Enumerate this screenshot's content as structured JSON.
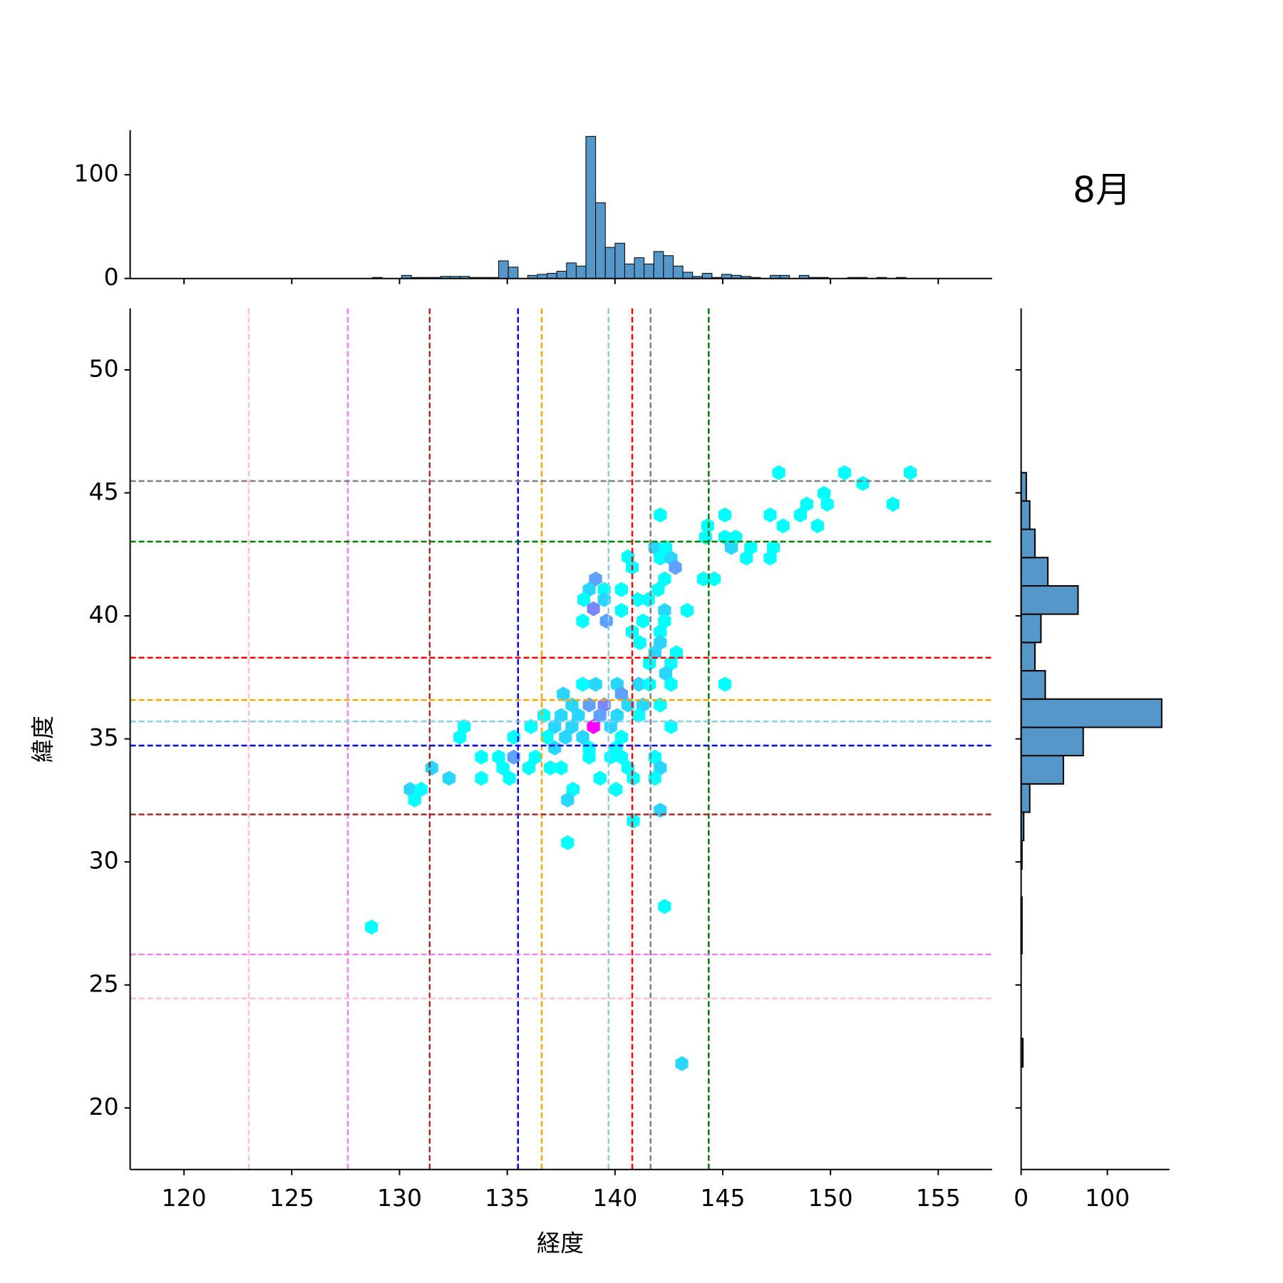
{
  "chart_data": [
    {
      "type": "hexbin",
      "xlabel": "経度",
      "ylabel": "緯度",
      "annotation": "8月",
      "xlim": [
        117.5,
        157.5
      ],
      "ylim": [
        17.5,
        52.5
      ],
      "xticks": [
        120,
        125,
        130,
        135,
        140,
        145,
        150,
        155
      ],
      "yticks": [
        20,
        25,
        30,
        35,
        40,
        45,
        50
      ],
      "cmap": [
        "#00ffff",
        "#ff00ff"
      ],
      "x": [
        147.6,
        150.65,
        153.7,
        151.5,
        152.9,
        148.9,
        149.7,
        149.85,
        149.4,
        148.6,
        147.2,
        145.1,
        142.1,
        144.3,
        147.8,
        144.2,
        145.1,
        145.6,
        145.4,
        146.3,
        146.1,
        147.2,
        147.35,
        141.85,
        142.35,
        140.6,
        142.1,
        142.6,
        140.8,
        142.8,
        142.3,
        142.0,
        144.1,
        144.6,
        139.1,
        138.8,
        139.5,
        138.55,
        140.3,
        141.05,
        141.55,
        139.5,
        139.0,
        143.35,
        142.3,
        140.3,
        139.6,
        138.5,
        141.3,
        142.3,
        140.8,
        142.1,
        141.15,
        142.1,
        141.85,
        142.85,
        141.6,
        142.6,
        142.35,
        142.6,
        145.1,
        137.6,
        138.5,
        139.1,
        140.1,
        141.1,
        141.6,
        138.0,
        138.8,
        139.5,
        140.3,
        140.6,
        141.3,
        142.1,
        136.7,
        137.5,
        138.3,
        139.3,
        140.1,
        141.1,
        139.0,
        142.6,
        136.1,
        137.2,
        138.0,
        139.8,
        133.0,
        132.8,
        135.3,
        136.85,
        137.7,
        138.5,
        140.3,
        137.2,
        138.8,
        140.05,
        135.3,
        133.8,
        134.6,
        136.3,
        138.8,
        139.8,
        140.3,
        141.85,
        134.8,
        136.0,
        137.0,
        137.5,
        140.6,
        142.1,
        131.5,
        135.1,
        133.8,
        132.3,
        139.3,
        140.85,
        141.85,
        130.5,
        131.0,
        130.7,
        140.05,
        138.05,
        137.8,
        142.1,
        140.85,
        137.8,
        142.3,
        128.7,
        143.1
      ],
      "y": [
        45.82,
        45.82,
        45.82,
        45.38,
        44.54,
        44.54,
        44.98,
        44.54,
        43.66,
        44.1,
        44.1,
        44.1,
        44.1,
        43.66,
        43.66,
        43.2,
        43.2,
        43.2,
        42.78,
        42.78,
        42.35,
        42.35,
        42.78,
        42.78,
        42.78,
        42.4,
        42.35,
        42.35,
        41.97,
        41.97,
        41.5,
        41.07,
        41.5,
        41.5,
        41.5,
        41.07,
        41.07,
        40.66,
        41.07,
        40.66,
        40.66,
        40.66,
        40.29,
        40.22,
        40.22,
        40.22,
        39.79,
        39.79,
        39.79,
        39.79,
        39.35,
        39.35,
        38.91,
        38.91,
        38.5,
        38.5,
        38.07,
        38.07,
        37.66,
        37.22,
        37.22,
        36.82,
        37.22,
        37.22,
        37.22,
        37.22,
        37.22,
        36.38,
        36.38,
        36.38,
        36.82,
        36.38,
        36.38,
        36.38,
        35.95,
        35.95,
        35.95,
        35.95,
        35.95,
        35.95,
        35.5,
        35.5,
        35.5,
        35.5,
        35.5,
        35.5,
        35.5,
        35.07,
        35.07,
        35.07,
        35.07,
        35.07,
        35.07,
        34.63,
        34.63,
        34.63,
        34.26,
        34.26,
        34.26,
        34.26,
        34.26,
        34.26,
        34.26,
        34.26,
        33.82,
        33.82,
        33.82,
        33.82,
        33.82,
        33.82,
        33.82,
        33.4,
        33.4,
        33.4,
        33.4,
        33.4,
        33.4,
        32.95,
        32.95,
        32.52,
        32.95,
        32.95,
        32.52,
        32.1,
        31.66,
        30.78,
        28.19,
        27.35,
        21.8
      ],
      "values": [
        1,
        1,
        1,
        1,
        1,
        1,
        1,
        1,
        1,
        1,
        1,
        1,
        1,
        1,
        1,
        1,
        1,
        1,
        4,
        1,
        1,
        1,
        1,
        4,
        1,
        1,
        1,
        4,
        1,
        8,
        1,
        1,
        1,
        1,
        8,
        4,
        1,
        1,
        1,
        1,
        1,
        4,
        10,
        1,
        4,
        1,
        8,
        1,
        1,
        1,
        1,
        1,
        1,
        4,
        4,
        1,
        1,
        1,
        4,
        1,
        1,
        4,
        1,
        4,
        4,
        4,
        1,
        4,
        8,
        10,
        8,
        4,
        4,
        1,
        1,
        4,
        4,
        8,
        4,
        1,
        20,
        1,
        1,
        4,
        4,
        4,
        1,
        1,
        1,
        1,
        4,
        4,
        1,
        4,
        1,
        1,
        8,
        1,
        1,
        1,
        1,
        1,
        1,
        1,
        1,
        1,
        1,
        1,
        1,
        4,
        4,
        1,
        1,
        4,
        1,
        1,
        1,
        4,
        1,
        1,
        1,
        1,
        4,
        4,
        1,
        1,
        1,
        1,
        4
      ],
      "vlines": [
        {
          "value": 123.0,
          "color": "pink"
        },
        {
          "value": 127.6,
          "color": "violet"
        },
        {
          "value": 131.4,
          "color": "brown"
        },
        {
          "value": 135.5,
          "color": "blue"
        },
        {
          "value": 136.6,
          "color": "orange"
        },
        {
          "value": 139.7,
          "color": "skyblue"
        },
        {
          "value": 140.8,
          "color": "red"
        },
        {
          "value": 141.65,
          "color": "gray"
        },
        {
          "value": 144.35,
          "color": "green"
        }
      ],
      "hlines": [
        {
          "value": 45.48,
          "color": "gray"
        },
        {
          "value": 43.02,
          "color": "green"
        },
        {
          "value": 38.3,
          "color": "red"
        },
        {
          "value": 36.58,
          "color": "orange"
        },
        {
          "value": 35.71,
          "color": "skyblue"
        },
        {
          "value": 34.73,
          "color": "blue"
        },
        {
          "value": 31.93,
          "color": "brown"
        },
        {
          "value": 26.24,
          "color": "violet"
        },
        {
          "value": 24.45,
          "color": "pink"
        }
      ]
    },
    {
      "type": "histogram",
      "orientation": "vertical",
      "color": "#5597c8",
      "bins": [
        128.75,
        129.2,
        129.65,
        130.1,
        130.55,
        131,
        131.45,
        131.9,
        132.35,
        132.8,
        133.25,
        133.7,
        134.15,
        134.6,
        135.05,
        135.5,
        135.95,
        136.4,
        136.85,
        137.3,
        137.75,
        138.2,
        138.65,
        139.1,
        139.55,
        140,
        140.45,
        140.9,
        141.35,
        141.8,
        142.25,
        142.7,
        143.15,
        143.6,
        144.05,
        144.5,
        144.95,
        145.4,
        145.85,
        146.3,
        146.75,
        147.2,
        147.65,
        148.1,
        148.55,
        149,
        149.45,
        149.9,
        150.35,
        150.8,
        151.25,
        151.7,
        152.15,
        152.6,
        153.05,
        153.5,
        153.95
      ],
      "values": [
        1,
        0,
        0,
        3,
        1,
        1,
        1,
        2,
        2,
        2,
        1,
        1,
        1,
        17,
        11,
        0,
        3,
        4,
        5,
        7,
        15,
        12,
        137,
        73,
        30,
        34,
        14,
        20,
        14,
        26,
        22,
        12,
        6,
        2,
        5,
        1,
        4,
        3,
        2,
        1,
        0,
        3,
        3,
        0,
        3,
        1,
        1,
        0,
        0,
        1,
        1,
        0,
        1,
        0,
        1,
        0
      ],
      "ylim": [
        0,
        143
      ],
      "yticks": [
        0,
        100
      ]
    },
    {
      "type": "histogram",
      "orientation": "horizontal",
      "color": "#5597c8",
      "bins": [
        21.67,
        22.82,
        23.97,
        25.12,
        26.27,
        27.42,
        28.57,
        29.72,
        30.87,
        32.02,
        33.17,
        34.32,
        35.47,
        36.62,
        37.77,
        38.92,
        40.07,
        41.22,
        42.37,
        43.52,
        44.67,
        45.82
      ],
      "values": [
        2,
        0,
        0,
        0,
        1,
        1,
        0,
        1,
        3,
        10,
        49,
        72,
        163,
        28,
        16,
        23,
        66,
        31,
        16,
        10,
        6
      ],
      "xlim": [
        0,
        172
      ],
      "xticks": [
        0,
        100
      ]
    }
  ]
}
